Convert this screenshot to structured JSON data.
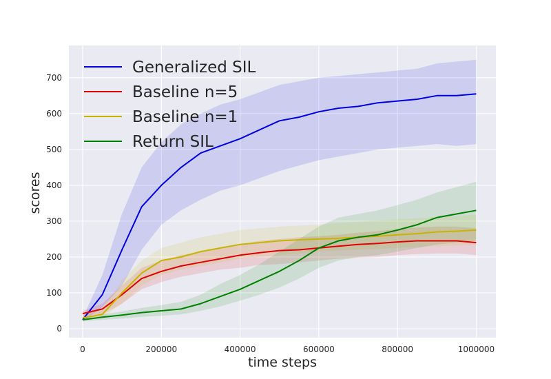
{
  "chart_data": {
    "type": "line",
    "title": "",
    "xlabel": "time steps",
    "ylabel": "scores",
    "xlim": [
      -35000,
      1050000
    ],
    "ylim": [
      -25,
      790
    ],
    "x_ticks": [
      0,
      200000,
      400000,
      600000,
      800000,
      1000000
    ],
    "x_tick_labels": [
      "0",
      "200000",
      "400000",
      "600000",
      "800000",
      "1000000"
    ],
    "y_ticks": [
      0,
      100,
      200,
      300,
      400,
      500,
      600,
      700
    ],
    "y_tick_labels": [
      "0",
      "100",
      "200",
      "300",
      "400",
      "500",
      "600",
      "700"
    ],
    "grid": true,
    "legend_position": "top-left",
    "x": [
      0,
      50000,
      100000,
      150000,
      200000,
      250000,
      300000,
      350000,
      400000,
      450000,
      500000,
      550000,
      600000,
      650000,
      700000,
      750000,
      800000,
      850000,
      900000,
      950000,
      1000000
    ],
    "series": [
      {
        "name": "Generalized SIL",
        "color": "#0000e0",
        "values": [
          25,
          95,
          220,
          340,
          400,
          450,
          490,
          510,
          530,
          555,
          580,
          590,
          605,
          615,
          620,
          630,
          635,
          640,
          650,
          650,
          655
        ],
        "band_lower": [
          20,
          60,
          120,
          220,
          290,
          330,
          360,
          385,
          400,
          420,
          440,
          455,
          470,
          480,
          490,
          500,
          505,
          510,
          515,
          510,
          515
        ],
        "band_upper": [
          30,
          150,
          320,
          450,
          520,
          570,
          600,
          625,
          640,
          660,
          680,
          690,
          700,
          705,
          710,
          715,
          720,
          725,
          740,
          745,
          750
        ]
      },
      {
        "name": "Baseline n=5",
        "color": "#e00000",
        "values": [
          42,
          55,
          95,
          140,
          160,
          175,
          185,
          195,
          205,
          212,
          218,
          220,
          225,
          230,
          235,
          238,
          242,
          245,
          245,
          245,
          240
        ],
        "band_lower": [
          35,
          40,
          70,
          110,
          130,
          145,
          155,
          165,
          170,
          178,
          180,
          185,
          190,
          195,
          198,
          200,
          205,
          208,
          210,
          210,
          205
        ],
        "band_upper": [
          50,
          70,
          120,
          170,
          190,
          205,
          215,
          225,
          235,
          245,
          250,
          255,
          258,
          262,
          268,
          272,
          278,
          282,
          285,
          285,
          280
        ]
      },
      {
        "name": "Baseline n=1",
        "color": "#c8b400",
        "values": [
          30,
          40,
          100,
          155,
          190,
          200,
          215,
          225,
          235,
          240,
          245,
          248,
          250,
          252,
          255,
          258,
          262,
          265,
          270,
          272,
          275
        ],
        "band_lower": [
          25,
          30,
          70,
          120,
          150,
          165,
          175,
          185,
          195,
          200,
          205,
          210,
          215,
          218,
          220,
          222,
          225,
          228,
          230,
          232,
          235
        ],
        "band_upper": [
          35,
          55,
          135,
          190,
          225,
          240,
          255,
          265,
          275,
          280,
          285,
          288,
          290,
          295,
          298,
          302,
          305,
          308,
          312,
          315,
          318
        ]
      },
      {
        "name": "Return SIL",
        "color": "#008000",
        "values": [
          25,
          32,
          38,
          45,
          50,
          55,
          70,
          90,
          110,
          135,
          160,
          190,
          225,
          245,
          255,
          262,
          275,
          290,
          310,
          320,
          330
        ],
        "band_lower": [
          20,
          25,
          28,
          33,
          36,
          40,
          50,
          62,
          78,
          95,
          115,
          140,
          170,
          190,
          200,
          205,
          215,
          225,
          235,
          240,
          245
        ],
        "band_upper": [
          30,
          40,
          48,
          58,
          66,
          75,
          95,
          125,
          150,
          180,
          215,
          250,
          285,
          310,
          320,
          330,
          345,
          360,
          380,
          395,
          410
        ]
      }
    ]
  }
}
